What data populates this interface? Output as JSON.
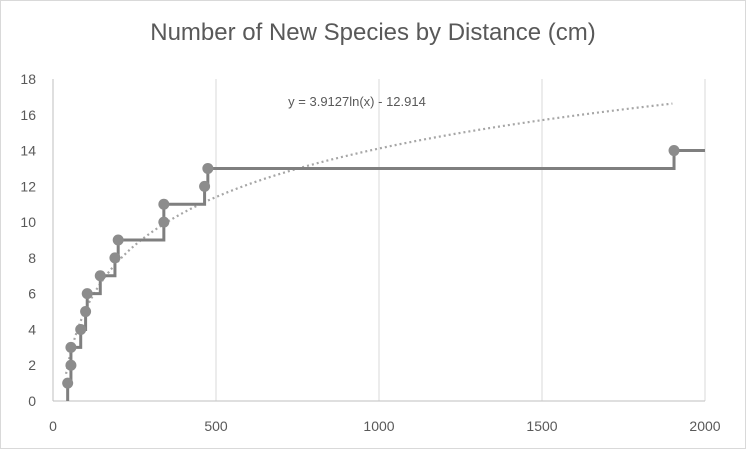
{
  "chart_data": {
    "type": "scatter",
    "title": "Number of New Species by Distance (cm)",
    "xlabel": "",
    "ylabel": "",
    "xlim": [
      0,
      2000
    ],
    "ylim": [
      0,
      18
    ],
    "x_ticks": [
      "0",
      "500",
      "1000",
      "1500",
      "2000"
    ],
    "y_ticks": [
      "0",
      "2",
      "4",
      "6",
      "8",
      "10",
      "12",
      "14",
      "16",
      "18"
    ],
    "grid": {
      "vertical": true,
      "horizontal": false
    },
    "legend": "none",
    "series": [
      {
        "style": "step-markers",
        "color": "#7f7f7f",
        "points": [
          {
            "x": 45,
            "y": 1
          },
          {
            "x": 55,
            "y": 2
          },
          {
            "x": 55,
            "y": 3
          },
          {
            "x": 85,
            "y": 4
          },
          {
            "x": 100,
            "y": 5
          },
          {
            "x": 105,
            "y": 6
          },
          {
            "x": 145,
            "y": 7
          },
          {
            "x": 190,
            "y": 8
          },
          {
            "x": 200,
            "y": 9
          },
          {
            "x": 340,
            "y": 10
          },
          {
            "x": 340,
            "y": 11
          },
          {
            "x": 465,
            "y": 12
          },
          {
            "x": 475,
            "y": 13
          },
          {
            "x": 1905,
            "y": 14
          }
        ],
        "step_extend_to_x": 2000
      }
    ],
    "trendline": {
      "type": "logarithmic",
      "a": 3.9127,
      "b": -12.914,
      "x_range": [
        40,
        1900
      ],
      "equation_label": "y = 3.9127ln(x) - 12.914",
      "color": "#a6a6a6"
    }
  }
}
